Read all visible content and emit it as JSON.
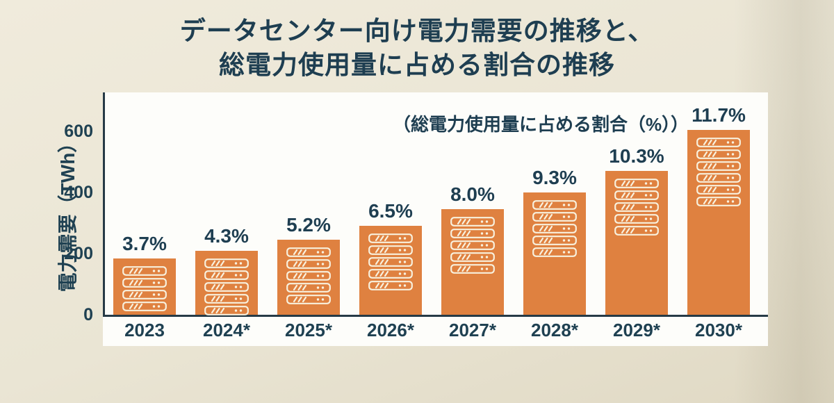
{
  "title": {
    "line1": "データセンター向け電力需要の推移と、",
    "line2": "総電力使用量に占める割合の推移"
  },
  "annotation": "（総電力使用量に占める割合（%））",
  "y_axis_title": "電力需要（TWh）",
  "colors": {
    "text": "#1E3E51",
    "bar": "#DF8140",
    "icon_stroke": "#F8F1DE",
    "axis": "#263A46",
    "plot_background": "#FDFDFA",
    "page_background": "#EAE5D4"
  },
  "chart_data": {
    "type": "bar",
    "title": "データセンター向け電力需要の推移と、総電力使用量に占める割合の推移",
    "categories": [
      "2023",
      "2024*",
      "2025*",
      "2026*",
      "2027*",
      "2028*",
      "2029*",
      "2030*"
    ],
    "series": [
      {
        "name": "電力需要（TWh）",
        "values": [
          185,
          210,
          245,
          290,
          345,
          400,
          470,
          605
        ]
      },
      {
        "name": "総電力使用量に占める割合（%）",
        "values": [
          3.7,
          4.3,
          5.2,
          6.5,
          8.0,
          9.3,
          10.3,
          11.7
        ]
      }
    ],
    "percent_labels": [
      "3.7%",
      "4.3%",
      "5.2%",
      "6.5%",
      "8.0%",
      "9.3%",
      "10.3%",
      "11.7%"
    ],
    "server_icon_counts": [
      4,
      5,
      5,
      5,
      5,
      5,
      5,
      6
    ],
    "yticks": [
      0,
      200,
      400,
      600
    ],
    "ylim": [
      0,
      660
    ],
    "ylabel": "電力需要（TWh）",
    "xlabel": "",
    "grid": false,
    "legend_position": "none",
    "annotation": "（総電力使用量に占める割合（%））"
  }
}
